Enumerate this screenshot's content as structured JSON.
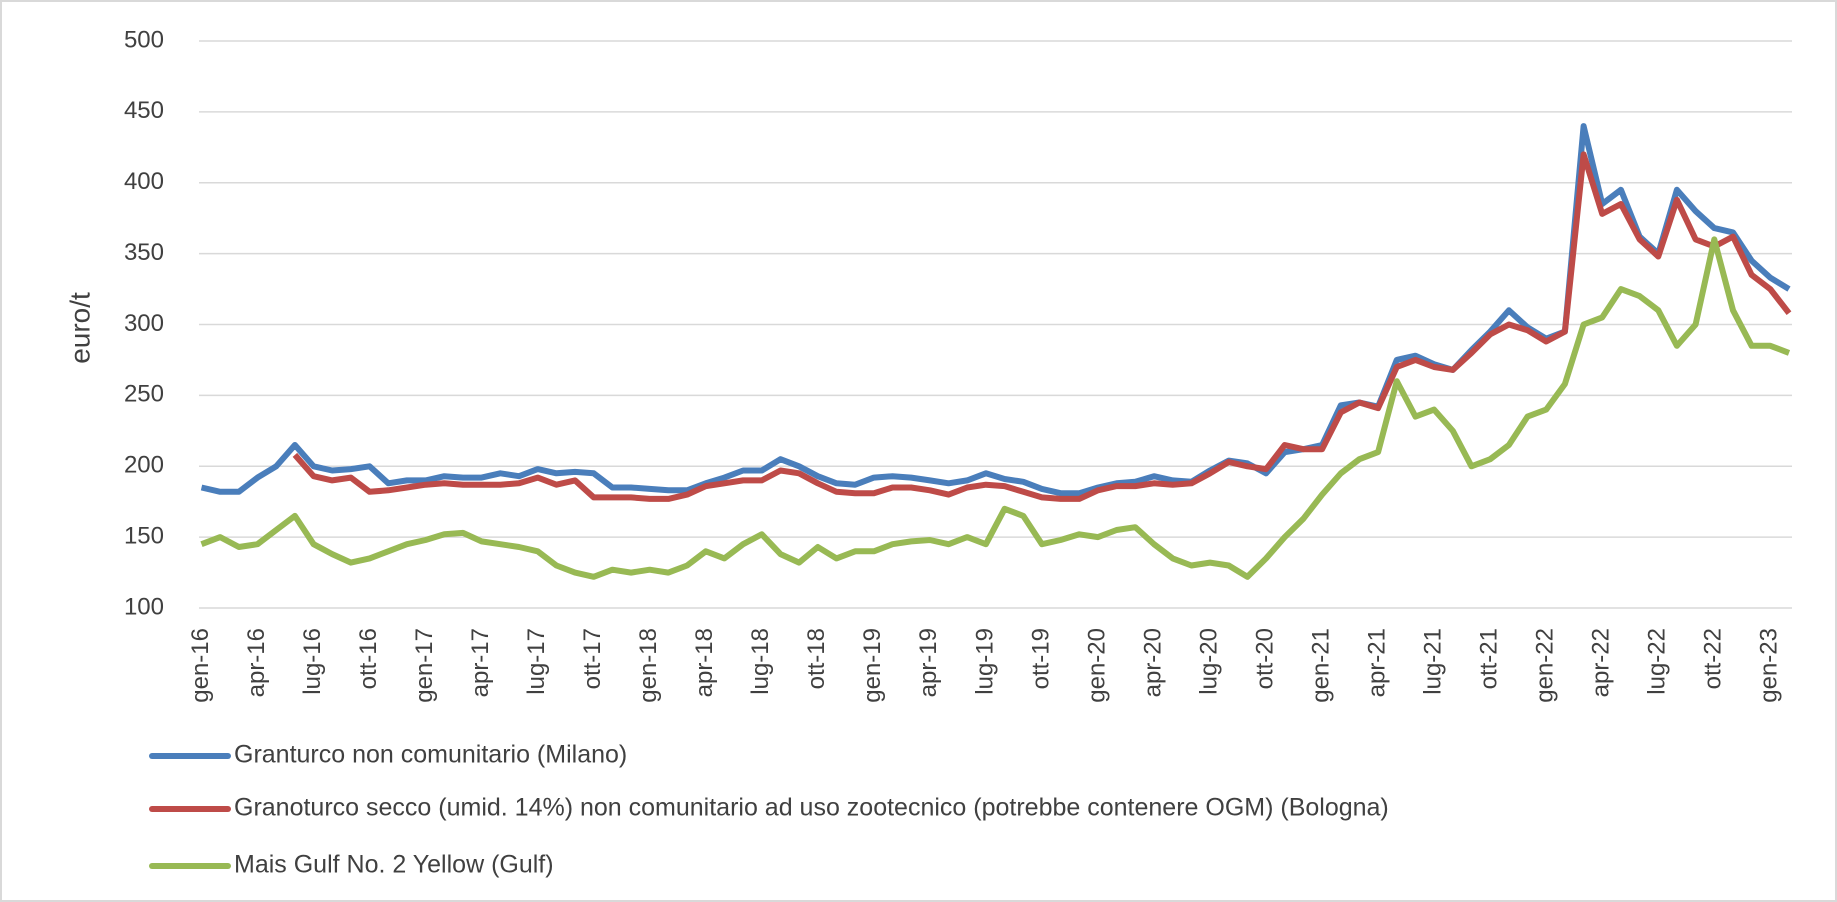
{
  "chart_data": {
    "type": "line",
    "y_label": "euro/t",
    "categories": [
      "gen-16",
      null,
      null,
      "apr-16",
      null,
      null,
      "lug-16",
      null,
      null,
      "ott-16",
      null,
      null,
      "gen-17",
      null,
      null,
      "apr-17",
      null,
      null,
      "lug-17",
      null,
      null,
      "ott-17",
      null,
      null,
      "gen-18",
      null,
      null,
      "apr-18",
      null,
      null,
      "lug-18",
      null,
      null,
      "ott-18",
      null,
      null,
      "gen-19",
      null,
      null,
      "apr-19",
      null,
      null,
      "lug-19",
      null,
      null,
      "ott-19",
      null,
      null,
      "gen-20",
      null,
      null,
      "apr-20",
      null,
      null,
      "lug-20",
      null,
      null,
      "ott-20",
      null,
      null,
      "gen-21",
      null,
      null,
      "apr-21",
      null,
      null,
      "lug-21",
      null,
      null,
      "ott-21",
      null,
      null,
      "gen-22",
      null,
      null,
      "apr-22",
      null,
      null,
      "lug-22",
      null,
      null,
      "ott-22",
      null,
      null,
      "gen-23",
      null
    ],
    "series": [
      {
        "name": "Granturco non comunitario (Milano)",
        "color": "#4a7ebb",
        "values": [
          185,
          182,
          182,
          192,
          200,
          215,
          200,
          197,
          198,
          200,
          188,
          190,
          190,
          193,
          192,
          192,
          195,
          193,
          198,
          195,
          196,
          195,
          185,
          185,
          184,
          183,
          183,
          188,
          192,
          197,
          197,
          205,
          200,
          193,
          188,
          187,
          192,
          193,
          192,
          190,
          188,
          190,
          195,
          191,
          189,
          184,
          181,
          181,
          185,
          188,
          189,
          193,
          190,
          189,
          197,
          204,
          202,
          195,
          210,
          212,
          215,
          243,
          245,
          242,
          275,
          278,
          272,
          268,
          282,
          295,
          310,
          298,
          290,
          295,
          440,
          385,
          395,
          362,
          350,
          395,
          380,
          368,
          365,
          345,
          333,
          325
        ]
      },
      {
        "name": "Granoturco secco (umid. 14%) non comunitario ad uso zootecnico (potrebbe contenere OGM) (Bologna)",
        "color": "#be4b48",
        "values": [
          null,
          null,
          null,
          null,
          null,
          208,
          193,
          190,
          192,
          182,
          183,
          185,
          187,
          188,
          187,
          187,
          187,
          188,
          192,
          187,
          190,
          178,
          178,
          178,
          177,
          177,
          180,
          186,
          188,
          190,
          190,
          197,
          195,
          188,
          182,
          181,
          181,
          185,
          185,
          183,
          180,
          185,
          187,
          186,
          182,
          178,
          177,
          177,
          183,
          186,
          186,
          188,
          187,
          188,
          195,
          203,
          200,
          198,
          215,
          212,
          212,
          238,
          245,
          241,
          270,
          275,
          270,
          268,
          280,
          293,
          300,
          296,
          288,
          295,
          420,
          378,
          385,
          360,
          348,
          388,
          360,
          355,
          362,
          335,
          325,
          308
        ]
      },
      {
        "name": "Mais Gulf No. 2 Yellow (Gulf)",
        "color": "#98b954",
        "values": [
          145,
          150,
          143,
          145,
          155,
          165,
          145,
          138,
          132,
          135,
          140,
          145,
          148,
          152,
          153,
          147,
          145,
          143,
          140,
          130,
          125,
          122,
          127,
          125,
          127,
          125,
          130,
          140,
          135,
          145,
          152,
          138,
          132,
          143,
          135,
          140,
          140,
          145,
          147,
          148,
          145,
          150,
          145,
          170,
          165,
          145,
          148,
          152,
          150,
          155,
          157,
          145,
          135,
          130,
          132,
          130,
          122,
          135,
          150,
          163,
          180,
          195,
          205,
          210,
          260,
          235,
          240,
          225,
          200,
          205,
          215,
          235,
          240,
          258,
          300,
          305,
          325,
          320,
          310,
          285,
          300,
          360,
          310,
          285,
          285,
          280
        ]
      }
    ],
    "ylim": [
      100,
      500
    ],
    "yticks": [
      100,
      150,
      200,
      250,
      300,
      350,
      400,
      450,
      500
    ],
    "grid": true,
    "legend": "bottom"
  }
}
